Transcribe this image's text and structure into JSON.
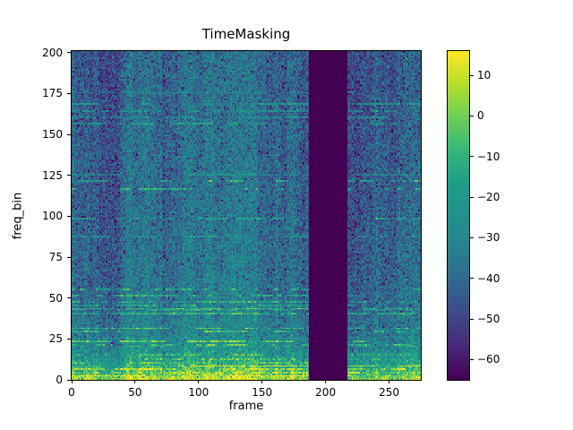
{
  "window": {
    "background": "#ffffff"
  },
  "chart_data": {
    "type": "heatmap",
    "title": "TimeMasking",
    "xlabel": "frame",
    "ylabel": "freq_bin",
    "x_range": [
      0,
      275
    ],
    "y_range": [
      0,
      201
    ],
    "x_ticks": [
      0,
      50,
      100,
      150,
      200,
      250
    ],
    "y_ticks": [
      0,
      25,
      50,
      75,
      100,
      125,
      150,
      175,
      200
    ],
    "colormap": "viridis",
    "color_range": [
      -65,
      16
    ],
    "colorbar_ticks": [
      10,
      0,
      -10,
      -20,
      -30,
      -40,
      -50,
      -60
    ],
    "masked_region": {
      "axis": "frame",
      "start": 187,
      "end": 216,
      "fill": "colormap minimum (dark purple)"
    },
    "content_summary": "Spectrogram-style magnitude heatmap (dB). Bright yellow-green horizontal harmonic streaks concentrated in low frequency bins (0-50), teal/blue-purple noise texture at higher bins, and one solid dark vertical time-masked band covering frames ~187-216.",
    "legend_position": "right colorbar"
  }
}
